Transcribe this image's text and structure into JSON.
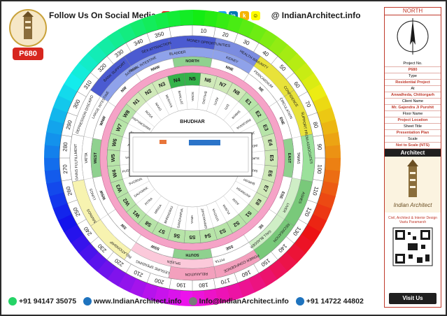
{
  "header": {
    "follow_text": "Follow Us On Social Media",
    "site_text": "@ IndianArchitect.info",
    "social_icons": [
      "youtube-icon",
      "facebook-icon",
      "pinterest-icon",
      "instagram-icon",
      "telegram-icon",
      "twitter-icon",
      "linkedin-icon",
      "koo-icon",
      "snapchat-icon"
    ]
  },
  "logo": {
    "badge": "P680"
  },
  "wheel": {
    "degrees": [
      "10",
      "20",
      "30",
      "40",
      "50",
      "60",
      "70",
      "80",
      "90",
      "100",
      "110",
      "120",
      "130",
      "140",
      "150",
      "160",
      "170",
      "180",
      "190",
      "200",
      "210",
      "220",
      "230",
      "240",
      "250",
      "260",
      "270",
      "280",
      "290",
      "300",
      "310",
      "320",
      "330",
      "340",
      "350"
    ],
    "zones_outer": [
      {
        "label": "MONEY OPPORTUNITIES",
        "angle": 8
      },
      {
        "label": "HEALTH IMMUNITY",
        "angle": 32
      },
      {
        "label": "SEX ATTRACTION",
        "angle": -18
      },
      {
        "label": "CONFIDENCE",
        "angle": 58
      },
      {
        "label": "SUPPORT FROM ASSOCIATES",
        "angle": 80
      },
      {
        "label": "ASHES",
        "angle": 110
      },
      {
        "label": "RECREATION",
        "angle": 130
      },
      {
        "label": "POWER CONFIDENCE",
        "angle": 155
      },
      {
        "label": "RELAXATION",
        "angle": 178
      },
      {
        "label": "LEISURE SPENDING",
        "angle": 200
      },
      {
        "label": "RELATIONSHIP",
        "angle": 218
      },
      {
        "label": "SAVINGS",
        "angle": 240
      },
      {
        "label": "GAINS FULFILLMENT",
        "angle": 268
      },
      {
        "label": "DEPRESSION DISCARD",
        "angle": 292
      },
      {
        "label": "BANK SUPPORT",
        "angle": 318
      }
    ],
    "zones_mid": [
      {
        "label": "KIDNEY",
        "angle": 22
      },
      {
        "label": "BLADDER",
        "angle": -8
      },
      {
        "label": "PERICARDIUM",
        "angle": 42
      },
      {
        "label": "CIRCULATION",
        "angle": 62
      },
      {
        "label": "TAMAS",
        "angle": 90
      },
      {
        "label": "LIVER",
        "angle": 118
      },
      {
        "label": "GALL BLADDER",
        "angle": 140
      },
      {
        "label": "SPLEEN",
        "angle": 190
      },
      {
        "label": "PITTA",
        "angle": 165
      },
      {
        "label": "LUNGS",
        "angle": 250
      },
      {
        "label": "VATTA",
        "angle": 270
      },
      {
        "label": "LARGE INTESTINE",
        "angle": 300
      },
      {
        "label": "SMALL INTESTINE",
        "angle": 332
      }
    ],
    "sattva_label": "SATTAVA",
    "directions": [
      {
        "label": "NORTH",
        "angle": 0
      },
      {
        "label": "NNE",
        "angle": 22.5
      },
      {
        "label": "NE",
        "angle": 45
      },
      {
        "label": "ENE",
        "angle": 67.5
      },
      {
        "label": "EAST",
        "angle": 90
      },
      {
        "label": "ESE",
        "angle": 112.5
      },
      {
        "label": "SE",
        "angle": 135
      },
      {
        "label": "SSE",
        "angle": 157.5
      },
      {
        "label": "SOUTH",
        "angle": 180
      },
      {
        "label": "SSW",
        "angle": 202.5
      },
      {
        "label": "SW",
        "angle": 225
      },
      {
        "label": "WSW",
        "angle": 247.5
      },
      {
        "label": "WEST",
        "angle": 270
      },
      {
        "label": "WNW",
        "angle": 292.5
      },
      {
        "label": "NW",
        "angle": 315
      },
      {
        "label": "NNW",
        "angle": 337.5
      }
    ],
    "padas": [
      "N5",
      "N6",
      "N7",
      "N8",
      "E1",
      "E2",
      "E3",
      "E4",
      "E5",
      "E6",
      "E7",
      "E8",
      "S1",
      "S2",
      "S3",
      "S4",
      "S5",
      "S6",
      "S7",
      "S8",
      "W1",
      "W2",
      "W3",
      "W4",
      "W5",
      "W6",
      "W7",
      "W8",
      "N1",
      "N2",
      "N3",
      "N4"
    ],
    "deities": [
      "SOMA",
      "BHUJAG",
      "ADITI",
      "DITI",
      "SHIKHI",
      "PARJANYA",
      "JAYANT",
      "INDRA",
      "SURYA",
      "SATYA",
      "BHRISH",
      "ANTRIKSH",
      "AGNI",
      "PUSHA",
      "VITATHA",
      "GRIHAKSHAT",
      "YAMA",
      "GANDHARVA",
      "BHRINGRAJ",
      "MRIGA",
      "PITRA",
      "DAUVARIK",
      "SUGRIVA",
      "PUSHPDANT",
      "VARUN",
      "ASUR",
      "SHOSH",
      "PAPYAKSHMA",
      "ROGA",
      "NAAG",
      "MUKHYA",
      "BHALLAT"
    ],
    "center": {
      "label": "BHUDHAR"
    }
  },
  "side": {
    "north_label": "NORTH",
    "rows": [
      {
        "key": "Project No.",
        "value": "P680"
      },
      {
        "key": "Type",
        "value": "Residential Project"
      },
      {
        "key": "At",
        "value": "Anwalheda, Chittorgarh"
      },
      {
        "key": "Client Name",
        "value": "Mr. Gajendra Ji Purohit"
      },
      {
        "key": "Floor Name",
        "value": "Project Location"
      },
      {
        "key": "Sheet Title",
        "value": "Presentation Plan"
      },
      {
        "key": "Scale",
        "value": "Not to Scale (NTS)"
      }
    ],
    "architect_heading": "Architect",
    "firm_name": "Indian Architect",
    "credits_line1": "Civil, Architect & Interior Design",
    "credits_line2": "Vastu Paramarsh",
    "visit_label": "Visit Us"
  },
  "footer": {
    "phone1": "+91 94147 35075",
    "web": "www.IndianArchitect.info",
    "email": "Info@IndianArchitect.info",
    "phone2": "+91 14722 44802"
  },
  "colors": {
    "accent": "#c0392b",
    "badge": "#d7261e"
  }
}
